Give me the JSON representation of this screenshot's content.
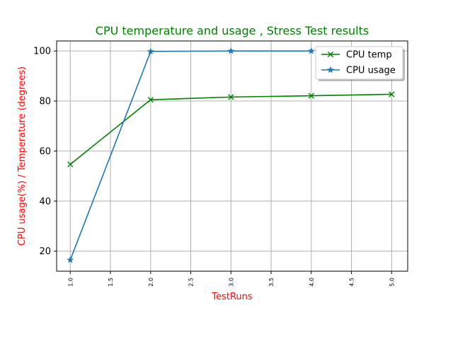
{
  "chart_data": {
    "type": "line",
    "title": "CPU temperature and usage , Stress Test results",
    "xlabel": "TestRuns",
    "ylabel": "CPU usage(%) / Temperature (degrees)",
    "xlim": [
      0.83,
      5.2
    ],
    "ylim": [
      12,
      104
    ],
    "x_ticks": [
      "1.0",
      "1.5",
      "2.0",
      "2.5",
      "3.0",
      "3.5",
      "4.0",
      "4.5",
      "5.0"
    ],
    "y_ticks": [
      "20",
      "40",
      "60",
      "80",
      "100"
    ],
    "grid": true,
    "legend_position": "top-right",
    "series": [
      {
        "name": "CPU temp",
        "color": "#008000",
        "marker": "x",
        "x": [
          1,
          2,
          3,
          4,
          5
        ],
        "y": [
          54.7,
          80.5,
          81.6,
          82.1,
          82.7
        ]
      },
      {
        "name": "CPU usage",
        "color": "#1f77b4",
        "marker": "star",
        "x": [
          1,
          2,
          3,
          4
        ],
        "y": [
          16.5,
          99.8,
          100.0,
          100.0
        ]
      }
    ],
    "title_color": "#008000",
    "label_color": "#ff0000"
  }
}
